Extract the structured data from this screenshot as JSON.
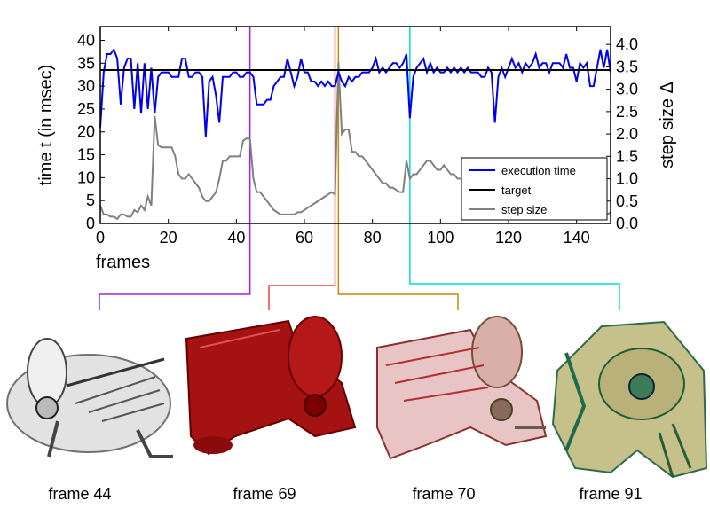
{
  "chart_data": {
    "type": "line",
    "xlabel": "frames",
    "ylabel_left": "time t (in msec)",
    "ylabel_right": "step size Δ",
    "xlim": [
      0,
      150
    ],
    "ylim_left": [
      0,
      43
    ],
    "ylim_right": [
      0,
      4.4
    ],
    "x_ticks": [
      0,
      20,
      40,
      60,
      80,
      100,
      120,
      140
    ],
    "y_ticks_left": [
      0,
      5,
      10,
      15,
      20,
      25,
      30,
      35,
      40
    ],
    "y_ticks_right": [
      0.0,
      0.5,
      1.0,
      1.5,
      2.0,
      2.5,
      3.0,
      3.5,
      4.0
    ],
    "legend": {
      "position": "lower-right",
      "entries": [
        "execution time",
        "target",
        "step size"
      ]
    },
    "target": 33.5,
    "series": [
      {
        "name": "execution time",
        "axis": "left",
        "color": "#0000ee",
        "x": [
          0,
          1,
          2,
          3,
          4,
          5,
          6,
          7,
          8,
          9,
          10,
          11,
          12,
          13,
          14,
          15,
          16,
          17,
          18,
          19,
          20,
          21,
          22,
          23,
          24,
          25,
          26,
          27,
          28,
          29,
          30,
          31,
          32,
          33,
          34,
          35,
          36,
          37,
          38,
          39,
          40,
          41,
          42,
          43,
          44,
          45,
          46,
          47,
          48,
          49,
          50,
          51,
          52,
          53,
          54,
          55,
          56,
          57,
          58,
          59,
          60,
          61,
          62,
          63,
          64,
          65,
          66,
          67,
          68,
          69,
          70,
          71,
          72,
          73,
          74,
          75,
          76,
          77,
          78,
          79,
          80,
          81,
          82,
          83,
          84,
          85,
          86,
          87,
          88,
          89,
          90,
          91,
          92,
          93,
          94,
          95,
          96,
          97,
          98,
          99,
          100,
          101,
          102,
          103,
          104,
          105,
          106,
          107,
          108,
          109,
          110,
          111,
          112,
          113,
          114,
          115,
          116,
          117,
          118,
          119,
          120,
          121,
          122,
          123,
          124,
          125,
          126,
          127,
          128,
          129,
          130,
          131,
          132,
          133,
          134,
          135,
          136,
          137,
          138,
          139,
          140,
          141,
          142,
          143,
          144,
          145,
          146,
          147,
          148,
          149,
          150
        ],
        "y": [
          21,
          33,
          37,
          37,
          38,
          36,
          26,
          34,
          36,
          36,
          25,
          35,
          24,
          35,
          25,
          34,
          24,
          32,
          33,
          33,
          33,
          32,
          32,
          32,
          36,
          36,
          32,
          32,
          33,
          33,
          32,
          19,
          31,
          32,
          28,
          22,
          32,
          32,
          32,
          33,
          33,
          32,
          32,
          33,
          33,
          32,
          26,
          26,
          26,
          27,
          27,
          30,
          31,
          32,
          32,
          36,
          33,
          30,
          32,
          36,
          33,
          33,
          31,
          31,
          30,
          31,
          30,
          31,
          30,
          30,
          33,
          31,
          30,
          32,
          31,
          32,
          32,
          33,
          33,
          33,
          34,
          36,
          33,
          34,
          33,
          34,
          35,
          35,
          34,
          35,
          37,
          23,
          32,
          34,
          35,
          36,
          33,
          35,
          33,
          34,
          33,
          33,
          34,
          33,
          34,
          33,
          34,
          33,
          34,
          33,
          33,
          33,
          32,
          32,
          34,
          33,
          22,
          32,
          34,
          32,
          34,
          36,
          34,
          35,
          33,
          35,
          34,
          35,
          37,
          34,
          35,
          35,
          33,
          35,
          35,
          35,
          34,
          37,
          34,
          34,
          31,
          35,
          34,
          35,
          30,
          30,
          34,
          38,
          34,
          38,
          33
        ]
      },
      {
        "name": "step size",
        "axis": "right",
        "color": "#808080",
        "x": [
          0,
          1,
          2,
          3,
          4,
          5,
          6,
          7,
          8,
          9,
          10,
          11,
          12,
          13,
          14,
          15,
          16,
          17,
          18,
          19,
          20,
          21,
          22,
          23,
          24,
          25,
          26,
          27,
          28,
          29,
          30,
          31,
          32,
          33,
          34,
          35,
          36,
          37,
          38,
          39,
          40,
          41,
          42,
          43,
          44,
          45,
          46,
          47,
          48,
          49,
          50,
          51,
          52,
          53,
          54,
          55,
          56,
          57,
          58,
          59,
          60,
          61,
          62,
          63,
          64,
          65,
          66,
          67,
          68,
          69,
          70,
          71,
          72,
          73,
          74,
          75,
          76,
          77,
          78,
          79,
          80,
          81,
          82,
          83,
          84,
          85,
          86,
          87,
          88,
          89,
          90,
          91,
          92,
          93,
          94,
          95,
          96,
          97,
          98,
          99,
          100,
          101,
          102,
          103,
          104,
          105,
          106,
          107,
          108,
          109,
          110,
          111,
          112,
          113,
          114,
          115,
          116,
          117,
          118,
          119,
          120,
          121,
          122,
          123,
          124,
          125,
          126,
          127,
          128,
          129,
          130,
          131,
          132,
          133,
          134,
          135,
          136,
          137,
          138,
          139,
          140,
          141,
          142,
          143,
          144,
          145,
          146,
          147,
          148,
          149,
          150
        ],
        "y": [
          0.4,
          0.2,
          0.2,
          0.15,
          0.15,
          0.1,
          0.2,
          0.2,
          0.15,
          0.15,
          0.3,
          0.25,
          0.4,
          0.3,
          0.6,
          0.4,
          2.4,
          1.75,
          1.7,
          1.7,
          1.7,
          1.7,
          1.5,
          1.1,
          1.0,
          1.0,
          1.1,
          1.0,
          0.9,
          0.8,
          0.6,
          0.5,
          0.5,
          0.6,
          0.7,
          1.0,
          1.4,
          1.4,
          1.5,
          1.5,
          1.5,
          1.5,
          1.85,
          1.9,
          1.9,
          1.0,
          0.7,
          0.7,
          0.6,
          0.5,
          0.4,
          0.3,
          0.25,
          0.2,
          0.2,
          0.2,
          0.2,
          0.2,
          0.25,
          0.25,
          0.3,
          0.35,
          0.4,
          0.45,
          0.5,
          0.55,
          0.6,
          0.65,
          0.7,
          0.65,
          3.6,
          2.0,
          2.1,
          2.1,
          1.6,
          1.6,
          1.5,
          1.5,
          1.4,
          1.3,
          1.2,
          1.1,
          1.0,
          0.9,
          0.9,
          0.8,
          0.8,
          0.75,
          0.7,
          0.7,
          1.4,
          1.0,
          1.1,
          1.1,
          1.2,
          1.3,
          1.4,
          1.4,
          1.3,
          1.2,
          1.2,
          1.3,
          1.2,
          1.1,
          1.1,
          1.0,
          1.0,
          0.9,
          0.8,
          0.7,
          0.6,
          0.5,
          0.5,
          0.4,
          0.4,
          0.3,
          0.3,
          0.3,
          0.3,
          0.2,
          0.2,
          0.2,
          0.25,
          0.2,
          0.2,
          0.2,
          0.25,
          0.2,
          0.3,
          0.2,
          0.25,
          0.2,
          0.25,
          0.2,
          0.2,
          0.25,
          0.2,
          0.2,
          0.25,
          0.2,
          0.3,
          0.2,
          0.2,
          0.25,
          0.2,
          0.25,
          0.2,
          0.25,
          0.3,
          0.2,
          0.25
        ]
      }
    ]
  },
  "markers": [
    {
      "frame": 44,
      "color": "#a020f0",
      "caption": "frame 44"
    },
    {
      "frame": 69,
      "color": "#ee4444",
      "caption": "frame 69"
    },
    {
      "frame": 70,
      "color": "#cc8800",
      "caption": "frame 70"
    },
    {
      "frame": 91,
      "color": "#00dddd",
      "caption": "frame 91"
    }
  ],
  "colors": {
    "target": "#000000",
    "axes": "#000000"
  }
}
